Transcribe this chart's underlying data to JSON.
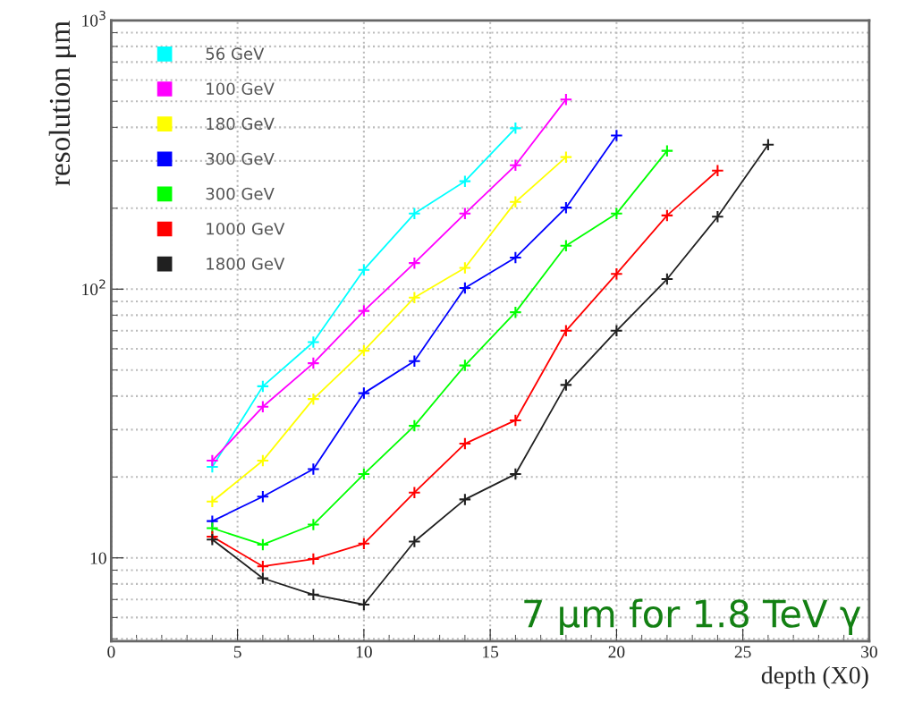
{
  "chart_data": {
    "type": "line",
    "xlabel": "depth (X0)",
    "ylabel": "resolution μm",
    "annotations": [
      "7 μm for 1.8 TeV γ"
    ],
    "xlim": [
      0,
      30
    ],
    "xticks": [
      0,
      5,
      10,
      15,
      20,
      25,
      30
    ],
    "ylim": [
      4.9,
      1000
    ],
    "yticks": [
      10,
      {
        "value": 100,
        "label": "10$^{2}$"
      },
      {
        "value": 1000,
        "label": "10$^{3}$"
      }
    ],
    "log": "y",
    "grid": true,
    "legend": "top left",
    "marker": "cross",
    "series": [
      {
        "name": "56 GeV",
        "color": "#00ffff",
        "x": [
          4,
          6,
          8,
          10,
          12,
          14,
          16
        ],
        "values": [
          21.8,
          43.5,
          63.5,
          118,
          191,
          252,
          397
        ]
      },
      {
        "name": "100 GeV",
        "color": "#ff00ff",
        "x": [
          4,
          6,
          8,
          10,
          12,
          14,
          16,
          18
        ],
        "values": [
          23,
          36.5,
          53,
          83,
          125,
          191,
          289,
          508
        ]
      },
      {
        "name": "180 GeV",
        "color": "#ffff00",
        "x": [
          4,
          6,
          8,
          10,
          12,
          14,
          16,
          18
        ],
        "values": [
          16.2,
          23,
          39,
          59,
          93,
          120,
          211,
          310
        ]
      },
      {
        "name": "300 GeV",
        "color": "#0000ff",
        "x": [
          4,
          6,
          8,
          10,
          12,
          14,
          16,
          18,
          20
        ],
        "values": [
          13.7,
          16.9,
          21.4,
          41,
          54,
          101,
          131,
          201,
          373
        ]
      },
      {
        "name": "300 GeV",
        "color": "#00ff00",
        "x": [
          4,
          6,
          8,
          10,
          12,
          14,
          16,
          18,
          20,
          22
        ],
        "values": [
          12.9,
          11.2,
          13.3,
          20.5,
          31,
          52,
          82,
          145,
          191,
          327
        ]
      },
      {
        "name": "1000 GeV",
        "color": "#ff0000",
        "x": [
          4,
          6,
          8,
          10,
          12,
          14,
          16,
          18,
          20,
          22,
          24
        ],
        "values": [
          12.0,
          9.3,
          9.9,
          11.3,
          17.5,
          26.6,
          32.5,
          70,
          114,
          188,
          276
        ]
      },
      {
        "name": "1800 GeV",
        "color": "#202020",
        "x": [
          4,
          6,
          8,
          10,
          12,
          14,
          16,
          18,
          20,
          22,
          24,
          26
        ],
        "values": [
          11.7,
          8.4,
          7.3,
          6.7,
          11.5,
          16.5,
          20.5,
          44,
          70,
          109,
          186,
          345
        ]
      }
    ]
  }
}
